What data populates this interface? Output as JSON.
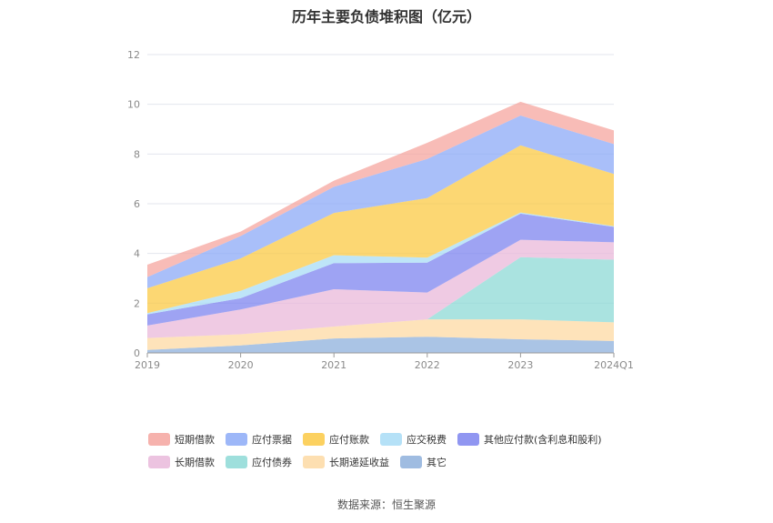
{
  "chart_data": {
    "type": "area",
    "stacked": true,
    "title": "历年主要负债堆积图（亿元）",
    "xlabel": "",
    "ylabel": "",
    "categories": [
      "2019",
      "2020",
      "2021",
      "2022",
      "2023",
      "2024Q1"
    ],
    "ylim": [
      0,
      12
    ],
    "yticks": [
      0,
      2,
      4,
      6,
      8,
      10,
      12
    ],
    "grid": true,
    "legend_position": "bottom",
    "series": [
      {
        "name": "其它",
        "color": "#8eb0dc",
        "values": [
          0.12,
          0.3,
          0.58,
          0.65,
          0.55,
          0.48
        ]
      },
      {
        "name": "长期递延收益",
        "color": "#fdd9a3",
        "values": [
          0.48,
          0.45,
          0.48,
          0.7,
          0.8,
          0.75
        ]
      },
      {
        "name": "应付债券",
        "color": "#8dd9d6",
        "values": [
          0.0,
          0.0,
          0.0,
          0.0,
          2.5,
          2.52
        ]
      },
      {
        "name": "长期借款",
        "color": "#e9b8da",
        "values": [
          0.5,
          1.0,
          1.5,
          1.08,
          0.7,
          0.7
        ]
      },
      {
        "name": "其他应付款(含利息和股利)",
        "color": "#7d84ef",
        "values": [
          0.45,
          0.45,
          1.05,
          1.2,
          1.05,
          0.62
        ]
      },
      {
        "name": "应交税费",
        "color": "#a8dcf6",
        "values": [
          0.05,
          0.3,
          0.32,
          0.2,
          0.05,
          0.03
        ]
      },
      {
        "name": "应付账款",
        "color": "#fbc944",
        "values": [
          1.0,
          1.3,
          1.7,
          2.4,
          2.7,
          2.1
        ]
      },
      {
        "name": "应付票据",
        "color": "#8caaf7",
        "values": [
          0.45,
          0.9,
          1.05,
          1.57,
          1.2,
          1.2
        ]
      },
      {
        "name": "短期借款",
        "color": "#f5a59f",
        "values": [
          0.5,
          0.18,
          0.25,
          0.65,
          0.55,
          0.55
        ]
      }
    ],
    "legend_rows": [
      [
        "短期借款",
        "应付票据",
        "应付账款",
        "应交税费",
        "其他应付款(含利息和股利)"
      ],
      [
        "长期借款",
        "应付债券",
        "长期递延收益",
        "其它"
      ]
    ]
  },
  "source_text": "数据来源：恒生聚源"
}
